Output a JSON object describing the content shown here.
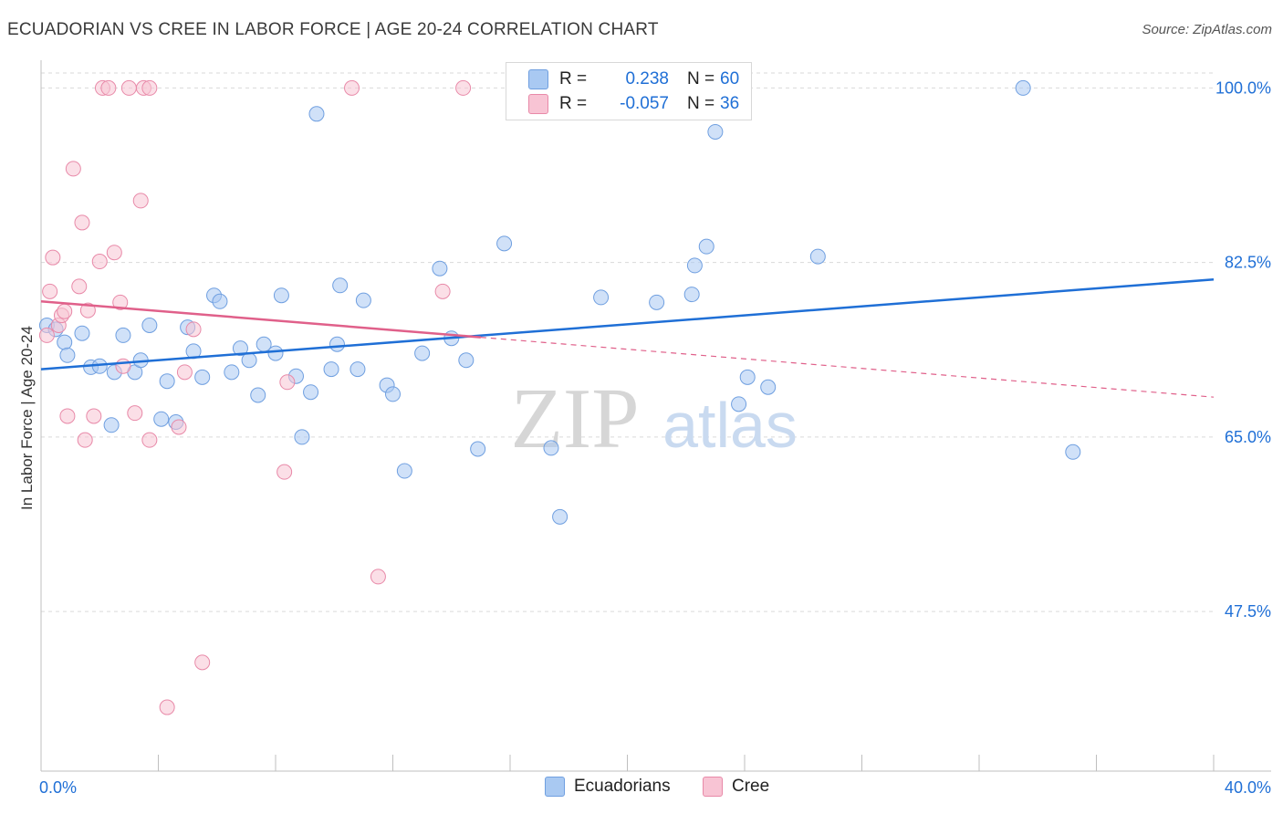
{
  "title": "ECUADORIAN VS CREE IN LABOR FORCE | AGE 20-24 CORRELATION CHART",
  "source": "Source: ZipAtlas.com",
  "watermark": {
    "zip": "ZIP",
    "atlas": "atlas"
  },
  "legend": {
    "r_label": "R =",
    "n_label": "N =",
    "rows": [
      {
        "r": "0.238",
        "n": "60",
        "color": "#a9c9f2",
        "border": "#6f9fe0"
      },
      {
        "r": "-0.057",
        "n": "36",
        "color": "#f8c4d4",
        "border": "#e889a8"
      }
    ]
  },
  "bottom_legend": [
    "Ecuadorians",
    "Cree"
  ],
  "chart_data": {
    "type": "scatter",
    "title": "ECUADORIAN VS CREE IN LABOR FORCE | AGE 20-24 CORRELATION CHART",
    "xlabel": "",
    "ylabel": "In Labor Force | Age 20-24",
    "xlim": [
      0,
      40
    ],
    "ylim": [
      31.5,
      101.5
    ],
    "x_tick_labels": [
      "0.0%",
      "40.0%"
    ],
    "y_ticks": [
      47.5,
      65.0,
      82.5,
      100.0
    ],
    "y_tick_labels": [
      "47.5%",
      "65.0%",
      "82.5%",
      "100.0%"
    ],
    "grid": true,
    "series": [
      {
        "name": "Ecuadorians",
        "color": "#a9c9f2",
        "edge": "#6f9fe0",
        "trend": {
          "x": [
            0,
            40
          ],
          "y": [
            71.8,
            80.8
          ],
          "color": "#1f6fd6"
        },
        "points": [
          [
            0.2,
            76.2
          ],
          [
            0.5,
            75.8
          ],
          [
            0.8,
            74.5
          ],
          [
            0.9,
            73.2
          ],
          [
            1.4,
            75.4
          ],
          [
            1.7,
            72.0
          ],
          [
            2.0,
            72.1
          ],
          [
            2.4,
            66.2
          ],
          [
            2.5,
            71.5
          ],
          [
            2.8,
            75.2
          ],
          [
            3.2,
            71.5
          ],
          [
            3.4,
            72.7
          ],
          [
            3.7,
            76.2
          ],
          [
            4.1,
            66.8
          ],
          [
            4.3,
            70.6
          ],
          [
            4.6,
            66.5
          ],
          [
            5.0,
            76.0
          ],
          [
            5.2,
            73.6
          ],
          [
            5.5,
            71.0
          ],
          [
            5.9,
            79.2
          ],
          [
            6.1,
            78.6
          ],
          [
            6.5,
            71.5
          ],
          [
            6.8,
            73.9
          ],
          [
            7.1,
            72.7
          ],
          [
            7.4,
            69.2
          ],
          [
            7.6,
            74.3
          ],
          [
            8.0,
            73.4
          ],
          [
            8.2,
            79.2
          ],
          [
            8.7,
            71.1
          ],
          [
            8.9,
            65.0
          ],
          [
            9.2,
            69.5
          ],
          [
            9.4,
            97.4
          ],
          [
            9.9,
            71.8
          ],
          [
            10.1,
            74.3
          ],
          [
            10.2,
            80.2
          ],
          [
            10.8,
            71.8
          ],
          [
            11.0,
            78.7
          ],
          [
            11.8,
            70.2
          ],
          [
            12.0,
            69.3
          ],
          [
            12.4,
            61.6
          ],
          [
            13.0,
            73.4
          ],
          [
            13.6,
            81.9
          ],
          [
            14.0,
            74.9
          ],
          [
            14.5,
            72.7
          ],
          [
            14.9,
            63.8
          ],
          [
            15.8,
            84.4
          ],
          [
            17.4,
            63.9
          ],
          [
            17.7,
            57.0
          ],
          [
            19.1,
            79.0
          ],
          [
            21.0,
            78.5
          ],
          [
            22.2,
            79.3
          ],
          [
            22.3,
            82.2
          ],
          [
            22.7,
            84.1
          ],
          [
            23.0,
            95.6
          ],
          [
            23.8,
            68.3
          ],
          [
            24.1,
            71.0
          ],
          [
            24.8,
            70.0
          ],
          [
            26.5,
            83.1
          ],
          [
            33.5,
            100.0
          ],
          [
            35.2,
            63.5
          ]
        ]
      },
      {
        "name": "Cree",
        "color": "#f8c4d4",
        "edge": "#e889a8",
        "trend": {
          "x": [
            0,
            15
          ],
          "y": [
            78.6,
            75.0
          ],
          "color": "#e0608a",
          "dash_to": [
            40,
            69.0
          ]
        },
        "points": [
          [
            0.2,
            75.2
          ],
          [
            0.3,
            79.6
          ],
          [
            0.4,
            83.0
          ],
          [
            0.6,
            76.2
          ],
          [
            0.7,
            77.2
          ],
          [
            0.8,
            77.6
          ],
          [
            0.9,
            67.1
          ],
          [
            1.1,
            91.9
          ],
          [
            1.3,
            80.1
          ],
          [
            1.4,
            86.5
          ],
          [
            1.5,
            64.7
          ],
          [
            1.6,
            77.7
          ],
          [
            1.8,
            67.1
          ],
          [
            2.0,
            82.6
          ],
          [
            2.1,
            100.0
          ],
          [
            2.3,
            100.0
          ],
          [
            2.5,
            83.5
          ],
          [
            2.7,
            78.5
          ],
          [
            2.8,
            72.1
          ],
          [
            3.0,
            100.0
          ],
          [
            3.2,
            67.4
          ],
          [
            3.4,
            88.7
          ],
          [
            3.5,
            100.0
          ],
          [
            3.7,
            100.0
          ],
          [
            3.7,
            64.7
          ],
          [
            4.3,
            37.9
          ],
          [
            4.7,
            66.0
          ],
          [
            4.9,
            71.5
          ],
          [
            5.2,
            75.8
          ],
          [
            5.5,
            42.4
          ],
          [
            8.3,
            61.5
          ],
          [
            8.4,
            70.5
          ],
          [
            10.6,
            100.0
          ],
          [
            11.5,
            51.0
          ],
          [
            13.7,
            79.6
          ],
          [
            14.4,
            100.0
          ]
        ]
      }
    ]
  }
}
